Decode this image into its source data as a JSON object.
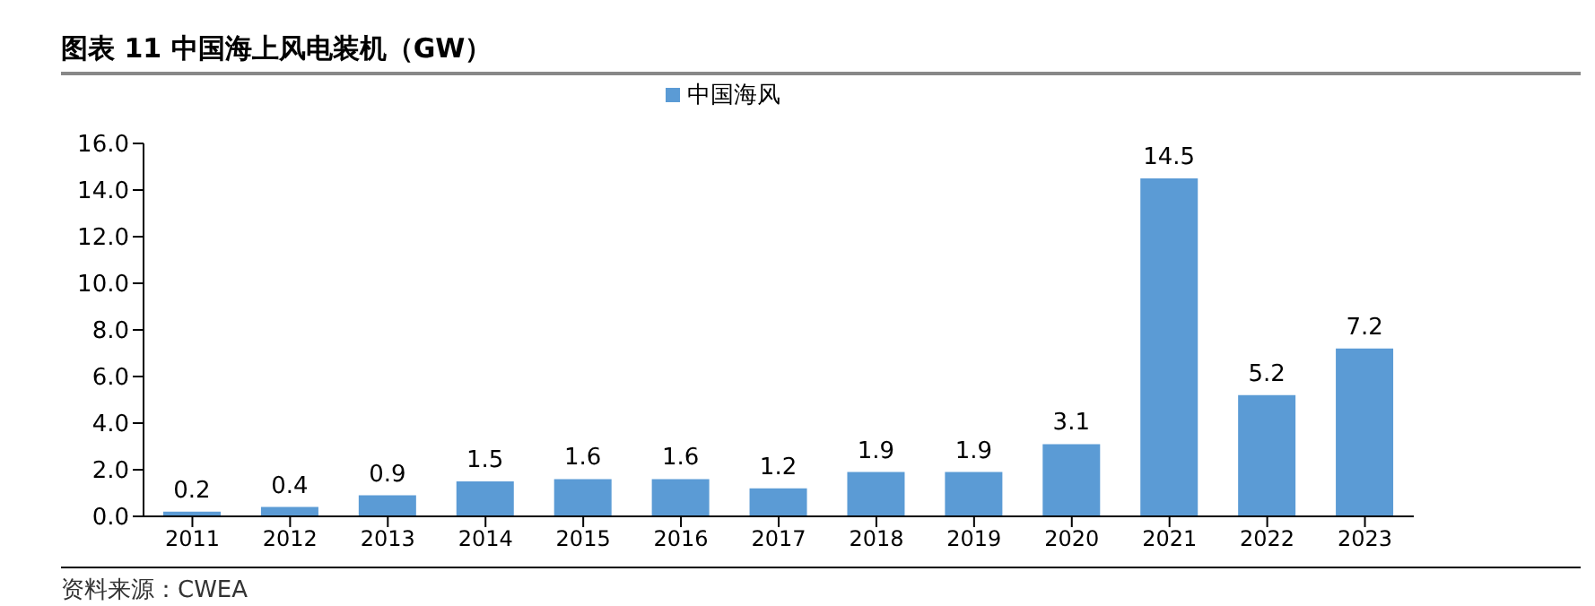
{
  "chart_data": {
    "type": "bar",
    "title": "图表 11 中国海上风电装机（GW）",
    "categories": [
      "2011",
      "2012",
      "2013",
      "2014",
      "2015",
      "2016",
      "2017",
      "2018",
      "2019",
      "2020",
      "2021",
      "2022",
      "2023"
    ],
    "series": [
      {
        "name": "中国海风",
        "color": "#5b9bd5",
        "values": [
          0.2,
          0.4,
          0.9,
          1.5,
          1.6,
          1.6,
          1.2,
          1.9,
          1.9,
          3.1,
          14.5,
          5.2,
          7.2
        ]
      }
    ],
    "ylim": [
      0,
      16
    ],
    "yticks": [
      {
        "value": 0,
        "label": "0.0"
      },
      {
        "value": 2,
        "label": "2.0"
      },
      {
        "value": 4,
        "label": "4.0"
      },
      {
        "value": 6,
        "label": "6.0"
      },
      {
        "value": 8,
        "label": "8.0"
      },
      {
        "value": 10,
        "label": "10.0"
      },
      {
        "value": 12,
        "label": "12.0"
      },
      {
        "value": 14,
        "label": "14.0"
      },
      {
        "value": 16,
        "label": "16.0"
      }
    ],
    "data_labels": true,
    "legend": "top",
    "grid": false,
    "annotations": [
      "资料来源：CWEA"
    ]
  }
}
